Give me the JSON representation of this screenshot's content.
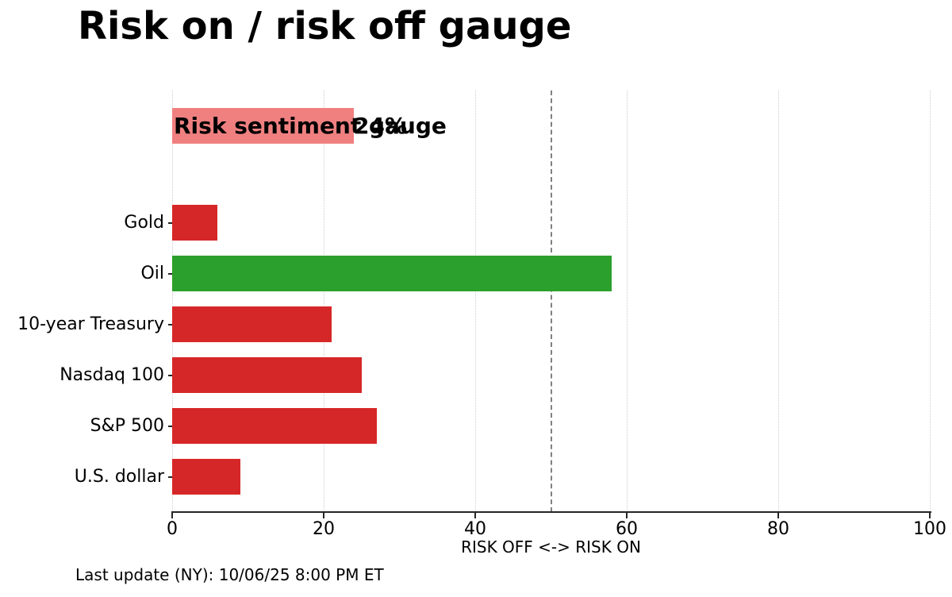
{
  "title": "Risk on / risk off gauge",
  "footer": "Last update (NY): 10/06/25 8:00 PM ET",
  "colors": {
    "risk_off_red": "#d62728",
    "risk_on_green": "#2ca02c",
    "gauge_pink": "#f08080",
    "reference_line": "#808080",
    "gridline": "#cccccc",
    "axis": "#262626"
  },
  "chart_data": {
    "type": "bar",
    "orientation": "horizontal",
    "title": "Risk on / risk off gauge",
    "xlabel": "RISK OFF <-> RISK ON",
    "ylabel": "",
    "xlim": [
      0,
      100
    ],
    "xticks": [
      0,
      20,
      40,
      60,
      80,
      100
    ],
    "grid": "vertical-dotted",
    "reference_line_x": 50,
    "gauge_row": {
      "label": "Risk sentiment gauge",
      "value": 24,
      "value_label": "24%",
      "color": "#f08080"
    },
    "categories": [
      "Gold",
      "Oil",
      "10-year Treasury",
      "Nasdaq 100",
      "S&P 500",
      "U.S. dollar"
    ],
    "values": [
      6,
      58,
      21,
      25,
      27,
      9
    ],
    "bar_colors": [
      "#d62728",
      "#2ca02c",
      "#d62728",
      "#d62728",
      "#d62728",
      "#d62728"
    ],
    "legend": null
  }
}
